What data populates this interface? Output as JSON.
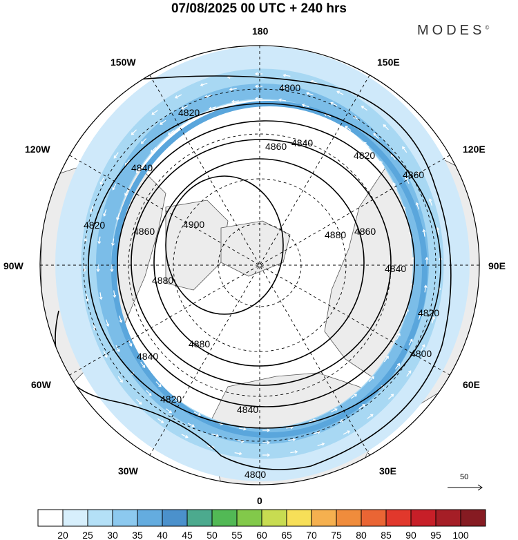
{
  "header": {
    "title": "07/08/2025  00 UTC  + 240 hrs",
    "brand": "MODES",
    "brand_mark": "©"
  },
  "map": {
    "projection": "polar-stereographic-north",
    "center": "North Pole",
    "longitude_labels": [
      "180",
      "150E",
      "120E",
      "90E",
      "60E",
      "30E",
      "0",
      "30W",
      "60W",
      "90W",
      "120W",
      "150W"
    ],
    "contour_labels": [
      "4800",
      "4820",
      "4840",
      "4860",
      "4880",
      "4900"
    ],
    "contour_color": "#000000",
    "land_color": "#eeeeee",
    "wind_vectors_color": "#ffffff"
  },
  "vector_reference": {
    "label": "50"
  },
  "colorbar": {
    "tick_labels": [
      "20",
      "25",
      "30",
      "35",
      "40",
      "45",
      "50",
      "55",
      "60",
      "65",
      "70",
      "75",
      "80",
      "85",
      "90",
      "95",
      "100"
    ],
    "colors": [
      "#ffffff",
      "#d7effc",
      "#b4e0f7",
      "#8cc9ef",
      "#64acdf",
      "#4b91cc",
      "#4caa8e",
      "#52b955",
      "#82c94a",
      "#c8dc51",
      "#f7df58",
      "#f5b04f",
      "#f08c3c",
      "#ea6534",
      "#e1382c",
      "#c71f28",
      "#a51e26",
      "#861b22"
    ]
  }
}
